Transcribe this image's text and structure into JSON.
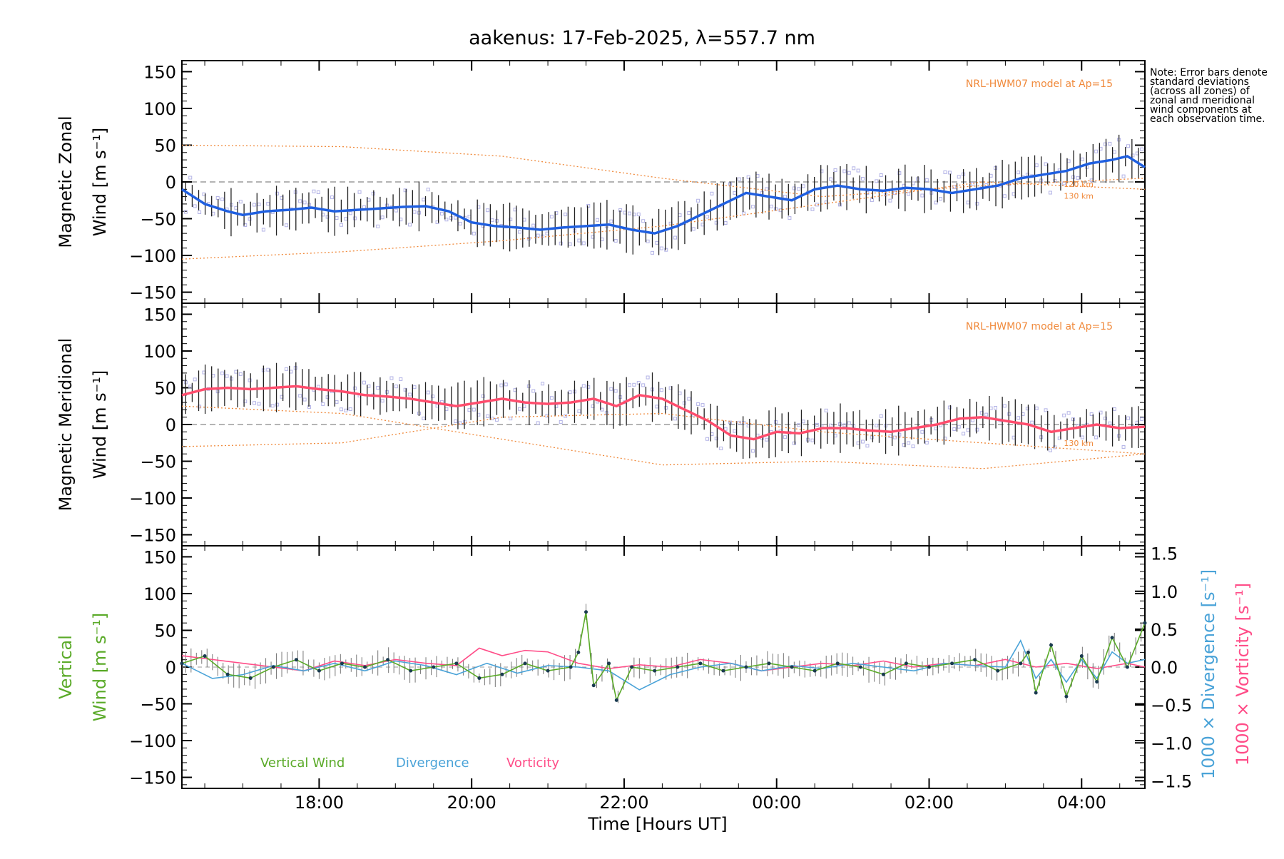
{
  "title": "aakenus: 17-Feb-2025, λ=557.7 nm",
  "note": "Note: Error bars denote standard deviations (across all zones) of zonal and meridional wind components at each observation time.",
  "xlabel": "Time [Hours UT]",
  "colors": {
    "model": "#f08a3c",
    "zonal_mean": "#1f5fe0",
    "meridional_mean": "#ff4d6d",
    "scatter": "#b3b3e6",
    "vertical": "#5aaa28",
    "divergence": "#4aa3d8",
    "vorticity": "#ff4d88",
    "errorbar": "#222222"
  },
  "chart_data": [
    {
      "type": "line",
      "panel": "zonal",
      "ylabel": "Magnetic Zonal",
      "ylabel2": "Wind [m s⁻¹]",
      "ylim": [
        -165,
        165
      ],
      "xlim": [
        16.2,
        28.83
      ],
      "x_ticks": [
        "18:00",
        "20:00",
        "22:00",
        "00:00",
        "02:00",
        "04:00"
      ],
      "y_ticks": [
        150,
        100,
        50,
        0,
        -50,
        -100,
        -150
      ],
      "model_label": "NRL-HWM07 model at Ap=15",
      "model_altitudes": [
        "120 km",
        "130 km"
      ],
      "series": [
        {
          "name": "Zonal mean",
          "x": [
            16.2,
            16.5,
            16.8,
            17.0,
            17.3,
            17.6,
            17.9,
            18.2,
            18.5,
            18.8,
            19.1,
            19.4,
            19.7,
            20.0,
            20.3,
            20.6,
            20.9,
            21.2,
            21.5,
            21.8,
            22.1,
            22.4,
            22.7,
            23.0,
            23.3,
            23.6,
            23.9,
            24.2,
            24.5,
            24.8,
            25.1,
            25.4,
            25.7,
            26.0,
            26.3,
            26.6,
            26.9,
            27.2,
            27.5,
            27.8,
            28.1,
            28.4,
            28.6,
            28.83
          ],
          "values": [
            -10,
            -30,
            -40,
            -45,
            -40,
            -38,
            -35,
            -40,
            -38,
            -36,
            -34,
            -33,
            -40,
            -55,
            -60,
            -62,
            -65,
            -62,
            -60,
            -58,
            -65,
            -70,
            -60,
            -45,
            -30,
            -15,
            -20,
            -25,
            -10,
            -5,
            -10,
            -12,
            -8,
            -10,
            -15,
            -10,
            -5,
            5,
            10,
            15,
            25,
            30,
            35,
            20
          ]
        },
        {
          "name": "Model 120 km",
          "x": [
            16.2,
            18.3,
            20.4,
            22.5,
            24.6,
            26.7,
            28.83
          ],
          "values": [
            50,
            48,
            35,
            5,
            -20,
            -5,
            5
          ]
        },
        {
          "name": "Model 130 km",
          "x": [
            16.2,
            18.3,
            20.4,
            22.5,
            24.6,
            26.7,
            28.83
          ],
          "values": [
            -105,
            -95,
            -80,
            -60,
            -30,
            0,
            -10
          ]
        }
      ]
    },
    {
      "type": "line",
      "panel": "meridional",
      "ylabel": "Magnetic Meridional",
      "ylabel2": "Wind [m s⁻¹]",
      "ylim": [
        -165,
        165
      ],
      "xlim": [
        16.2,
        28.83
      ],
      "y_ticks": [
        150,
        100,
        50,
        0,
        -50,
        -100,
        -150
      ],
      "model_label": "NRL-HWM07 model at Ap=15",
      "model_altitudes": [
        "130 km"
      ],
      "series": [
        {
          "name": "Meridional mean",
          "x": [
            16.2,
            16.5,
            16.8,
            17.1,
            17.4,
            17.7,
            18.0,
            18.3,
            18.6,
            18.9,
            19.2,
            19.5,
            19.8,
            20.1,
            20.4,
            20.7,
            21.0,
            21.3,
            21.6,
            21.9,
            22.2,
            22.5,
            22.8,
            23.1,
            23.4,
            23.7,
            24.0,
            24.3,
            24.6,
            24.9,
            25.2,
            25.5,
            25.8,
            26.1,
            26.4,
            26.7,
            27.0,
            27.3,
            27.6,
            27.9,
            28.2,
            28.5,
            28.83
          ],
          "values": [
            40,
            48,
            50,
            48,
            50,
            52,
            48,
            45,
            40,
            38,
            35,
            30,
            25,
            30,
            35,
            30,
            28,
            30,
            35,
            25,
            40,
            35,
            20,
            5,
            -15,
            -20,
            -10,
            -12,
            -5,
            -5,
            -8,
            -10,
            -5,
            0,
            8,
            10,
            5,
            0,
            -10,
            -5,
            0,
            -5,
            -3
          ]
        },
        {
          "name": "Model 120 km",
          "x": [
            16.2,
            18.3,
            20.4,
            22.5,
            24.6,
            26.7,
            28.83
          ],
          "values": [
            -30,
            -25,
            10,
            15,
            -10,
            -25,
            -40
          ]
        },
        {
          "name": "Model 130 km",
          "x": [
            16.2,
            18.3,
            20.4,
            22.5,
            24.6,
            26.7,
            28.83
          ],
          "values": [
            25,
            15,
            -20,
            -55,
            -50,
            -60,
            -40
          ]
        }
      ]
    },
    {
      "type": "line",
      "panel": "vertical",
      "ylabel": "Vertical",
      "ylabel2": "Wind [m s⁻¹]",
      "ylim": [
        -165,
        165
      ],
      "xlim": [
        16.2,
        28.83
      ],
      "y_ticks": [
        150,
        100,
        50,
        0,
        -50,
        -100,
        -150
      ],
      "right_axis": {
        "ylim": [
          -1.6,
          1.6
        ],
        "ticks": [
          "1.5",
          "1.0",
          "0.5",
          "0.0",
          "−0.5",
          "−1.0",
          "−1.5"
        ],
        "label_divergence": "1000 × Divergence [s⁻¹]",
        "label_vorticity": "1000 × Vorticity [s⁻¹]"
      },
      "legend": [
        "Vertical Wind",
        "Divergence",
        "Vorticity"
      ],
      "series": [
        {
          "name": "Vertical Wind",
          "x": [
            16.2,
            16.5,
            16.8,
            17.1,
            17.4,
            17.7,
            18.0,
            18.3,
            18.6,
            18.9,
            19.2,
            19.5,
            19.8,
            20.1,
            20.4,
            20.7,
            21.0,
            21.3,
            21.4,
            21.5,
            21.6,
            21.8,
            21.9,
            22.1,
            22.4,
            22.7,
            23.0,
            23.3,
            23.6,
            23.9,
            24.2,
            24.5,
            24.8,
            25.1,
            25.4,
            25.7,
            26.0,
            26.3,
            26.6,
            26.9,
            27.2,
            27.3,
            27.4,
            27.6,
            27.8,
            28.0,
            28.2,
            28.4,
            28.6,
            28.83
          ],
          "values": [
            5,
            15,
            -10,
            -15,
            0,
            10,
            -5,
            5,
            0,
            10,
            -5,
            0,
            5,
            -15,
            -10,
            5,
            -5,
            0,
            20,
            75,
            -25,
            5,
            -45,
            0,
            -5,
            0,
            5,
            -5,
            0,
            5,
            0,
            -5,
            5,
            0,
            -10,
            5,
            0,
            5,
            10,
            -5,
            5,
            20,
            -35,
            30,
            -40,
            15,
            -20,
            40,
            0,
            60
          ]
        },
        {
          "name": "Divergence",
          "x": [
            16.2,
            16.6,
            17.0,
            17.4,
            17.8,
            18.2,
            18.6,
            19.0,
            19.4,
            19.8,
            20.2,
            20.6,
            21.0,
            21.4,
            21.8,
            22.2,
            22.6,
            23.0,
            23.4,
            23.8,
            24.2,
            24.6,
            25.0,
            25.4,
            25.8,
            26.2,
            26.6,
            27.0,
            27.2,
            27.4,
            27.6,
            27.8,
            28.0,
            28.2,
            28.4,
            28.6,
            28.83
          ],
          "values": [
            0.05,
            -0.15,
            -0.1,
            0.02,
            -0.05,
            0.05,
            -0.05,
            0.08,
            0.02,
            -0.1,
            0.05,
            -0.08,
            0.02,
            0.0,
            -0.05,
            -0.3,
            -0.1,
            0.0,
            0.05,
            -0.05,
            0.02,
            -0.02,
            0.05,
            0.0,
            -0.05,
            0.05,
            0.02,
            0.0,
            0.35,
            -0.15,
            0.1,
            -0.2,
            0.1,
            -0.15,
            0.2,
            0.05,
            0.1
          ]
        },
        {
          "name": "Vorticity",
          "x": [
            16.2,
            16.6,
            17.0,
            17.4,
            17.8,
            18.2,
            18.6,
            19.0,
            19.4,
            19.8,
            20.1,
            20.4,
            20.7,
            21.0,
            21.4,
            21.8,
            22.2,
            22.6,
            23.0,
            23.4,
            23.8,
            24.2,
            24.6,
            25.0,
            25.4,
            25.8,
            26.2,
            26.6,
            27.0,
            27.4,
            27.8,
            28.2,
            28.6,
            28.83
          ],
          "values": [
            0.15,
            0.1,
            0.05,
            0.0,
            -0.05,
            0.08,
            0.02,
            0.1,
            0.05,
            0.02,
            0.25,
            0.15,
            0.22,
            0.2,
            0.05,
            -0.02,
            0.03,
            0.0,
            0.1,
            0.05,
            -0.05,
            0.0,
            0.05,
            0.02,
            0.08,
            0.0,
            0.05,
            0.02,
            0.1,
            0.0,
            0.05,
            -0.02,
            0.05,
            0.0
          ]
        }
      ]
    }
  ]
}
